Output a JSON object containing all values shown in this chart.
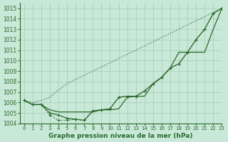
{
  "title": "Graphe pression niveau de la mer (hPa)",
  "bg_color": "#c8e8d8",
  "grid_color": "#a8c8b8",
  "line_color": "#2d6a2d",
  "xlim": [
    -0.5,
    23
  ],
  "ylim": [
    1004,
    1015.5
  ],
  "yticks": [
    1004,
    1005,
    1006,
    1007,
    1008,
    1009,
    1010,
    1011,
    1012,
    1013,
    1014,
    1015
  ],
  "xticks": [
    0,
    1,
    2,
    3,
    4,
    5,
    6,
    7,
    8,
    9,
    10,
    11,
    12,
    13,
    14,
    15,
    16,
    17,
    18,
    19,
    20,
    21,
    22,
    23
  ],
  "curve_main_markers": [
    1006.2,
    1005.8,
    1005.8,
    1004.8,
    1004.3,
    1004.3,
    1004.4,
    1004.3,
    1005.2,
    1005.3,
    1005.4,
    1006.5,
    1006.6,
    1006.6,
    1007.1,
    1007.8,
    1008.4,
    1009.3,
    1009.7,
    1010.8,
    1012.0,
    1013.0,
    1014.5,
    1015.0
  ],
  "curve_flat": [
    1006.2,
    1005.8,
    1005.8,
    1005.3,
    1005.1,
    1005.1,
    1005.1,
    1005.1,
    1005.1,
    1005.3,
    1005.3,
    1005.4,
    1006.5,
    1006.6,
    1006.6,
    1007.8,
    1008.4,
    1009.3,
    1010.8,
    1010.8,
    1010.8,
    1010.8,
    1013.0,
    1015.0
  ],
  "curve_upper_solid": [
    1006.2,
    1005.8,
    1005.8,
    1005.0,
    1004.8,
    1004.5,
    1004.4,
    1004.3,
    1005.2,
    1005.3,
    1005.4,
    1006.5,
    1006.6,
    1006.6,
    1007.1,
    1007.8,
    1008.4,
    1009.3,
    1009.7,
    1010.8,
    1012.0,
    1013.0,
    1014.5,
    1015.0
  ],
  "curve_top_dotted": [
    1006.2,
    1006.0,
    1006.2,
    1006.5,
    1007.2,
    1007.8,
    1008.2,
    1008.6,
    1009.0,
    1009.4,
    1009.8,
    1010.2,
    1010.6,
    1011.0,
    1011.4,
    1011.8,
    1012.2,
    1012.6,
    1013.0,
    1013.4,
    1013.8,
    1014.2,
    1014.6,
    1015.0
  ]
}
